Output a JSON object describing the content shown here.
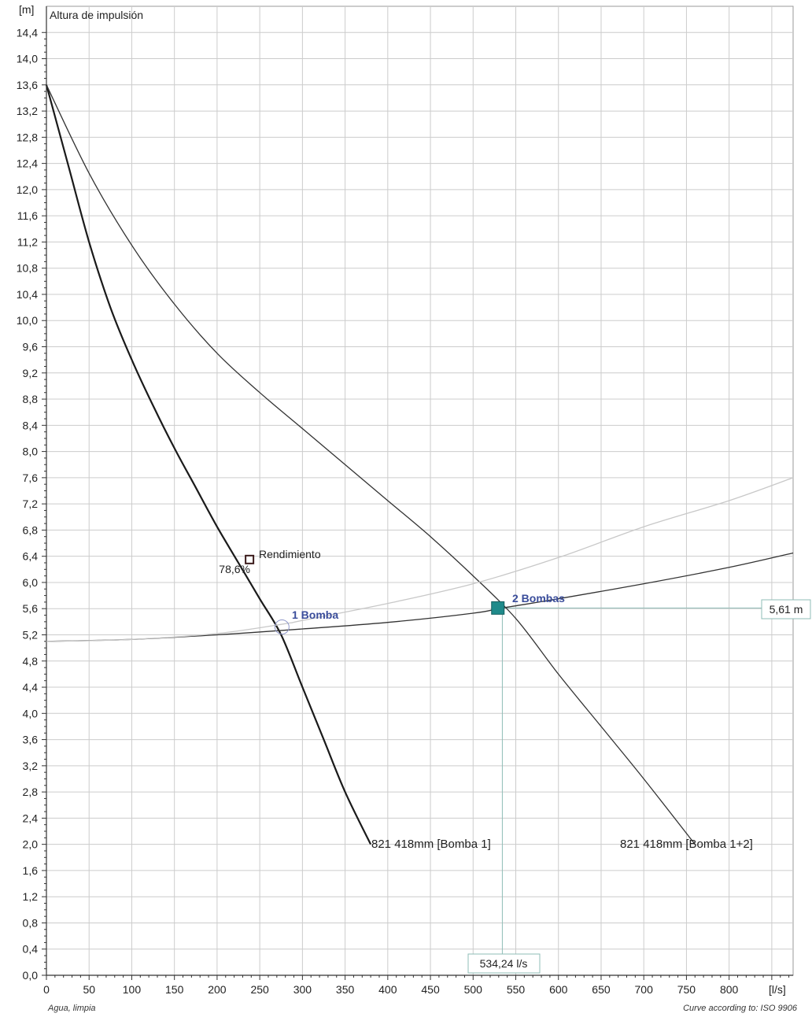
{
  "chart_data": {
    "type": "line",
    "title": "Altura de impulsión",
    "ylabel_unit": "[m]",
    "xlabel_unit": "[l/s]",
    "xlim": [
      0,
      875
    ],
    "ylim": [
      0,
      14.8
    ],
    "x_ticks": [
      0,
      50,
      100,
      150,
      200,
      250,
      300,
      350,
      400,
      450,
      500,
      550,
      600,
      650,
      700,
      750,
      800
    ],
    "x_tick_labels": [
      "0",
      "50",
      "100",
      "150",
      "200",
      "250",
      "300",
      "350",
      "400",
      "450",
      "500",
      "550",
      "600",
      "650",
      "700",
      "750",
      "800"
    ],
    "y_ticks": [
      0,
      0.4,
      0.8,
      1.2,
      1.6,
      2.0,
      2.4,
      2.8,
      3.2,
      3.6,
      4.0,
      4.4,
      4.8,
      5.2,
      5.6,
      6.0,
      6.4,
      6.8,
      7.2,
      7.6,
      8.0,
      8.4,
      8.8,
      9.2,
      9.6,
      10.0,
      10.4,
      10.8,
      11.2,
      11.6,
      12.0,
      12.4,
      12.8,
      13.2,
      13.6,
      14.0,
      14.4
    ],
    "y_tick_labels": [
      "0,0",
      "0,4",
      "0,8",
      "1,2",
      "1,6",
      "2,0",
      "2,4",
      "2,8",
      "3,2",
      "3,6",
      "4,0",
      "4,4",
      "4,8",
      "5,2",
      "5,6",
      "6,0",
      "6,4",
      "6,8",
      "7,2",
      "7,6",
      "8,0",
      "8,4",
      "8,8",
      "9,2",
      "9,6",
      "10,0",
      "10,4",
      "10,8",
      "11,2",
      "11,6",
      "12,0",
      "12,4",
      "12,8",
      "13,2",
      "13,6",
      "14,0",
      "14,4"
    ],
    "grid": true,
    "series": [
      {
        "name": "821 418mm [Bomba 1]",
        "kind": "pump",
        "color": "#1a1a1a",
        "x": [
          0,
          25,
          50,
          75,
          100,
          125,
          150,
          175,
          200,
          225,
          250,
          275,
          300,
          325,
          350,
          380
        ],
        "y": [
          13.6,
          12.4,
          11.2,
          10.2,
          9.4,
          8.7,
          8.05,
          7.45,
          6.85,
          6.3,
          5.75,
          5.2,
          4.4,
          3.6,
          2.8,
          2.0
        ]
      },
      {
        "name": "821 418mm [Bomba 1+2]",
        "kind": "pump",
        "color": "#333333",
        "x": [
          0,
          50,
          100,
          150,
          200,
          250,
          300,
          350,
          400,
          450,
          500,
          550,
          600,
          650,
          700,
          760
        ],
        "y": [
          13.6,
          12.25,
          11.15,
          10.25,
          9.5,
          8.9,
          8.35,
          7.8,
          7.25,
          6.7,
          6.1,
          5.45,
          4.6,
          3.8,
          3.0,
          2.0
        ]
      },
      {
        "kind": "system",
        "color": "#333333",
        "x": [
          0,
          100,
          200,
          300,
          400,
          500,
          534.24,
          600,
          700,
          800,
          875
        ],
        "y": [
          5.1,
          5.13,
          5.2,
          5.29,
          5.39,
          5.53,
          5.61,
          5.75,
          5.98,
          6.23,
          6.45
        ]
      },
      {
        "kind": "system",
        "color": "#c8c8c8",
        "x": [
          0,
          100,
          200,
          280,
          300,
          400,
          500,
          600,
          700,
          800,
          875
        ],
        "y": [
          5.1,
          5.13,
          5.22,
          5.37,
          5.42,
          5.68,
          5.98,
          6.38,
          6.85,
          7.25,
          7.6
        ]
      }
    ],
    "operating_points": [
      {
        "label": "1 Bomba",
        "x": 276,
        "y": 5.32,
        "marker": "circle"
      },
      {
        "label": "2 Bombas",
        "x": 529,
        "y": 5.61,
        "marker": "square"
      }
    ],
    "efficiency_point": {
      "label": "Rendimiento",
      "value_label": "78,6%",
      "x": 238,
      "y": 6.35
    },
    "flow_readout": "534,24 l/s",
    "head_readout": "5,61 m",
    "footnote_left": "Agua, limpia",
    "footnote_right": "Curve according to: ISO 9906",
    "colors": {
      "background": "#ffffff",
      "grid": "#cccccc",
      "axis": "#333333",
      "operating_point": "#1f8a8a",
      "guide_lines": "#8fbdb7",
      "op_label": "#3a4d9b"
    }
  }
}
